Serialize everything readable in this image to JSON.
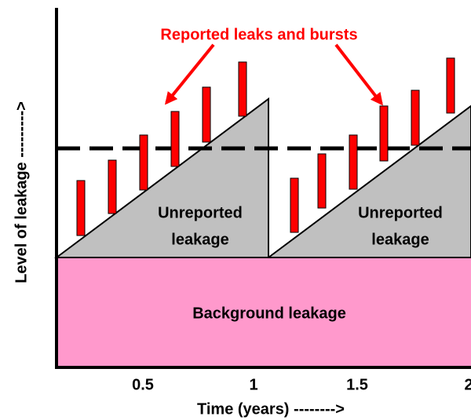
{
  "title": "Reported leaks and bursts",
  "regions": {
    "unreported": [
      "Unreported",
      "leakage"
    ],
    "unreported_2": [
      "Unreported",
      "leakage"
    ],
    "background": "Background leakage"
  },
  "x_axis": {
    "label": "Time (years) -------->",
    "ticks": [
      "0.5",
      "1",
      "1.5",
      "2"
    ]
  },
  "y_axis": {
    "label": "Level of leakage --------->"
  }
}
